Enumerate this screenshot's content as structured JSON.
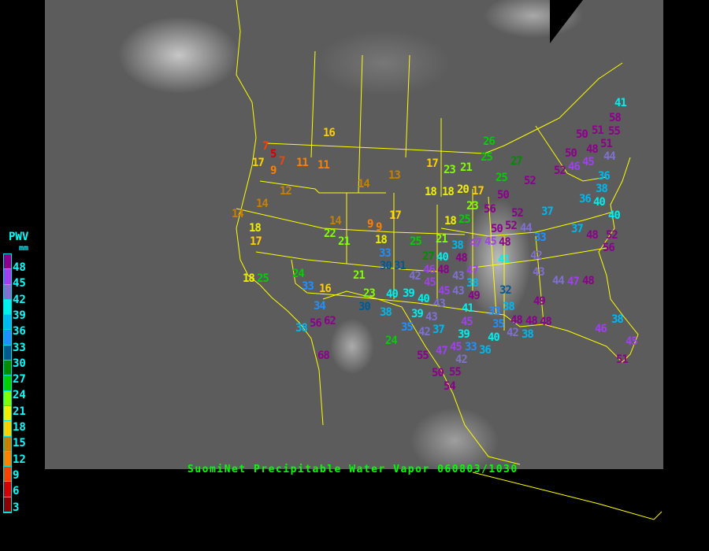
{
  "caption": "SuomiNet Precipitable Water Vapor 060803/1030",
  "legend": {
    "title": "PWV",
    "unit": "mm",
    "labels": [
      "48",
      "45",
      "42",
      "39",
      "36",
      "33",
      "30",
      "27",
      "24",
      "21",
      "18",
      "15",
      "12",
      "9",
      "6",
      "3"
    ],
    "colors": [
      "#8c008c",
      "#a040f0",
      "#8070d0",
      "#00f0f0",
      "#00b8f0",
      "#2090ff",
      "#005a90",
      "#008c00",
      "#00d000",
      "#80ff00",
      "#f0f000",
      "#ffd000",
      "#c88000",
      "#ff8000",
      "#ff4000",
      "#d40000",
      "#8b0000"
    ]
  },
  "boundary_color": "#ffff00",
  "stations": [
    "16",
    "7",
    "5",
    "7",
    "17",
    "9",
    "11",
    "11",
    "12",
    "14",
    "13",
    "17",
    "23",
    "21",
    "18",
    "18",
    "14",
    "14",
    "18",
    "17",
    "14",
    "9",
    "9",
    "22",
    "21",
    "18",
    "25",
    "21",
    "38",
    "17",
    "18",
    "23",
    "25",
    "20",
    "17",
    "18",
    "25",
    "24",
    "33",
    "16",
    "21",
    "34",
    "56",
    "62",
    "38",
    "68",
    "33",
    "30",
    "31",
    "23",
    "30",
    "40",
    "39",
    "38",
    "40",
    "43",
    "39",
    "43",
    "35",
    "42",
    "37",
    "24",
    "55",
    "50",
    "54",
    "55",
    "47",
    "42",
    "39",
    "45",
    "33",
    "36",
    "45",
    "41",
    "27",
    "40",
    "46",
    "48",
    "42",
    "45",
    "48",
    "43",
    "47",
    "45",
    "43",
    "49",
    "38",
    "45",
    "47",
    "48",
    "26",
    "25",
    "27",
    "25",
    "52",
    "50",
    "56",
    "52",
    "50",
    "52",
    "44",
    "37",
    "33",
    "41",
    "42",
    "43",
    "32",
    "49",
    "38",
    "33",
    "35",
    "40",
    "42",
    "48",
    "48",
    "38",
    "48",
    "50",
    "51",
    "55",
    "58",
    "51",
    "48",
    "44",
    "50",
    "45",
    "46",
    "52",
    "36",
    "38",
    "36",
    "40",
    "40",
    "37",
    "48",
    "52",
    "56",
    "44",
    "47",
    "48",
    "46",
    "38",
    "45",
    "51",
    "41"
  ]
}
